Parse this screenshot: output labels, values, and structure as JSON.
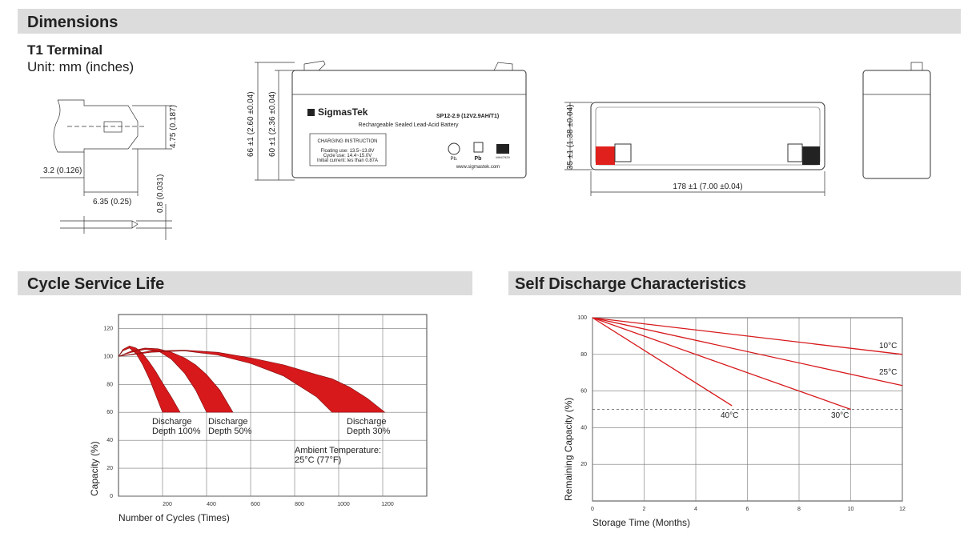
{
  "dimensions": {
    "title": "Dimensions",
    "terminal_title": "T1 Terminal",
    "unit": "Unit: mm (inches)",
    "terminal_labels": [
      "4.75 (0.187)",
      "3.2 (0.126)",
      "6.35 (0.25)",
      "0.8 (0.031)"
    ],
    "battery_labels": [
      "66 ±1 (2.60 ±0.04)",
      "60 ±1 (2.36 ±0.04)",
      "35 ±1 (1.38 ±0.04)",
      "178 ±1 (7.00 ±0.04)"
    ],
    "battery_label": {
      "brand": "SigmasTek",
      "model": "SP12-2.9 (12V2.9AH/T1)",
      "subtitle": "Rechargeable Sealed Lead-Acid Battery",
      "charging": [
        "CHARGING INSTRUCTION",
        "Floating use: 13.5~13.8V",
        "Cycle use: 14.4~15.0V",
        "Initial current: les than 0.87A"
      ],
      "icons": [
        "Pb.",
        "Pb",
        "MH47929"
      ],
      "website": "www.sigmastek.com"
    }
  },
  "chart_data": [
    {
      "type": "band",
      "title": "Cycle Service Life",
      "x_label": "Number of Cycles (Times)",
      "y_label": "Capacity (%)",
      "xlim": [
        0,
        1400
      ],
      "ylim": [
        0,
        130
      ],
      "xticks": [
        200,
        400,
        600,
        800,
        1000,
        1200
      ],
      "yticks": [
        0,
        20,
        40,
        60,
        80,
        100,
        120
      ],
      "grid": true,
      "annotation": "Ambient Temperature: 25°C (77°F)",
      "series": [
        {
          "name": "Discharge Depth 100%",
          "color": "#d7191c",
          "x": [
            0,
            20,
            50,
            80,
            110,
            140,
            170,
            200,
            240,
            280
          ],
          "high": [
            100,
            105,
            107.5,
            106,
            102,
            96,
            89,
            81,
            71,
            60
          ],
          "low": [
            100,
            104,
            106,
            102,
            94,
            84,
            72,
            60,
            null,
            null
          ]
        },
        {
          "name": "Discharge Depth 50%",
          "color": "#d7191c",
          "x": [
            0,
            60,
            120,
            180,
            240,
            300,
            350,
            400,
            460,
            520
          ],
          "high": [
            100,
            104,
            106,
            105.5,
            103,
            99,
            94,
            87,
            76,
            60
          ],
          "low": [
            100,
            103,
            105,
            104,
            98,
            88,
            76,
            60,
            null,
            null
          ]
        },
        {
          "name": "Discharge Depth 30%",
          "color": "#d7191c",
          "x": [
            0,
            150,
            300,
            450,
            600,
            750,
            900,
            970,
            1050,
            1130,
            1210
          ],
          "high": [
            100,
            104,
            104.5,
            103,
            99,
            94,
            87,
            84,
            78,
            70,
            60
          ],
          "low": [
            100,
            103,
            104,
            101,
            95,
            86,
            71,
            60,
            null,
            null,
            null
          ]
        }
      ]
    },
    {
      "type": "line",
      "title": "Self Discharge Characteristics",
      "x_label": "Storage Time (Months)",
      "y_label": "Remaining Capacity (%)",
      "xlim": [
        0,
        12
      ],
      "ylim": [
        0,
        100
      ],
      "xticks": [
        0,
        2,
        4,
        6,
        8,
        10,
        12
      ],
      "yticks": [
        20,
        40,
        60,
        80,
        100
      ],
      "grid": true,
      "reference_line": 50,
      "series": [
        {
          "name": "10°C",
          "color": "#d7191c",
          "x": [
            0,
            12
          ],
          "values": [
            100,
            80
          ]
        },
        {
          "name": "25°C",
          "color": "#d7191c",
          "x": [
            0,
            12
          ],
          "values": [
            100,
            63
          ]
        },
        {
          "name": "30°C",
          "color": "#d7191c",
          "x": [
            0,
            10
          ],
          "values": [
            100,
            50
          ]
        },
        {
          "name": "40°C",
          "color": "#d7191c",
          "x": [
            0,
            5.4
          ],
          "values": [
            100,
            52
          ]
        }
      ]
    }
  ]
}
